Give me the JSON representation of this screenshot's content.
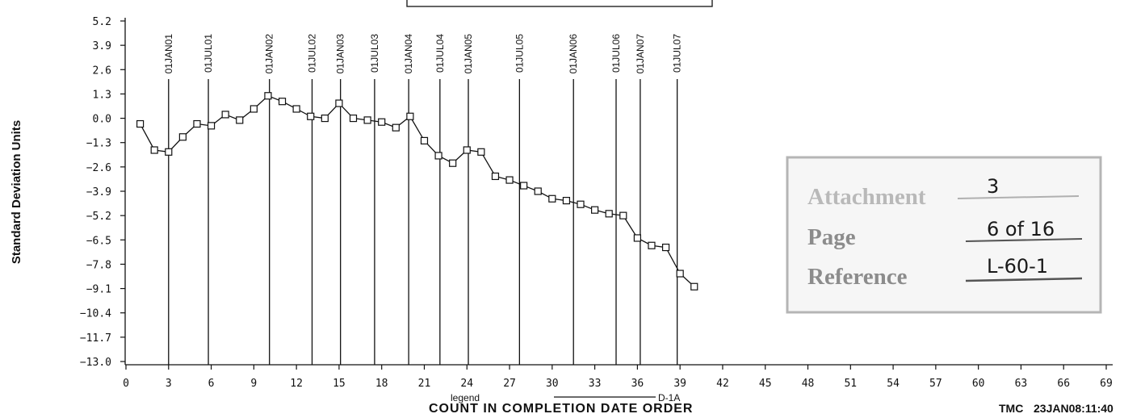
{
  "chart_data": {
    "type": "line",
    "ylabel": "Standard Deviation Units",
    "xlabel": "COUNT IN COMPLETION DATE ORDER",
    "legend": {
      "label": "legend",
      "series_name": "D-1A",
      "placement": "bottom-center"
    },
    "footer": {
      "left": "TMC",
      "right": "23JAN08:11:40"
    },
    "ylim": [
      -13.0,
      5.2
    ],
    "xlim": [
      0,
      69
    ],
    "yticks": [
      "5.2",
      "3.9",
      "2.6",
      "1.3",
      "0.0",
      "-1.3",
      "-2.6",
      "-3.9",
      "-5.2",
      "-6.5",
      "-7.8",
      "-9.1",
      "-10.4",
      "-11.7",
      "-13.0"
    ],
    "xticks": [
      "0",
      "3",
      "6",
      "9",
      "12",
      "15",
      "18",
      "21",
      "24",
      "27",
      "30",
      "33",
      "36",
      "39",
      "42",
      "45",
      "48",
      "51",
      "54",
      "57",
      "60",
      "63",
      "66",
      "69"
    ],
    "ytick_values": [
      5.2,
      3.9,
      2.6,
      1.3,
      0.0,
      -1.3,
      -2.6,
      -3.9,
      -5.2,
      -6.5,
      -7.8,
      -9.1,
      -10.4,
      -11.7,
      -13.0
    ],
    "xtick_values": [
      0,
      3,
      6,
      9,
      12,
      15,
      18,
      21,
      24,
      27,
      30,
      33,
      36,
      39,
      42,
      45,
      48,
      51,
      54,
      57,
      60,
      63,
      66,
      69
    ],
    "series": [
      {
        "name": "D-1A",
        "marker": "square",
        "x": [
          1,
          2,
          3,
          4,
          5,
          6,
          7,
          8,
          9,
          10,
          11,
          12,
          13,
          14,
          15,
          16,
          17,
          18,
          19,
          20,
          21,
          22,
          23,
          24,
          25,
          26,
          27,
          28,
          29,
          30,
          31,
          32,
          33,
          34,
          35,
          36,
          37,
          38,
          39,
          40
        ],
        "y": [
          -0.3,
          -1.7,
          -1.8,
          -1.0,
          -0.3,
          -0.4,
          0.2,
          -0.1,
          0.5,
          1.2,
          0.9,
          0.5,
          0.1,
          0.0,
          0.8,
          0.0,
          -0.1,
          -0.2,
          -0.5,
          0.1,
          -1.2,
          -2.0,
          -2.4,
          -1.7,
          -1.8,
          -3.1,
          -3.3,
          -3.6,
          -3.9,
          -4.3,
          -4.4,
          -4.6,
          -4.9,
          -5.1,
          -5.2,
          -6.4,
          -6.8,
          -6.9,
          -8.3,
          -9.0
        ]
      }
    ],
    "events": [
      {
        "label": "01JAN01",
        "x": 3.0
      },
      {
        "label": "01JUL01",
        "x": 5.8
      },
      {
        "label": "01JAN02",
        "x": 10.1
      },
      {
        "label": "01JUL02",
        "x": 13.1
      },
      {
        "label": "01JAN03",
        "x": 15.1
      },
      {
        "label": "01JUL03",
        "x": 17.5
      },
      {
        "label": "01JAN04",
        "x": 19.9
      },
      {
        "label": "01JUL04",
        "x": 22.1
      },
      {
        "label": "01JAN05",
        "x": 24.1
      },
      {
        "label": "01JUL05",
        "x": 27.7
      },
      {
        "label": "01JAN06",
        "x": 31.5
      },
      {
        "label": "01JUL06",
        "x": 34.5
      },
      {
        "label": "01JAN07",
        "x": 36.2
      },
      {
        "label": "01JUL07",
        "x": 38.8
      }
    ],
    "grid": false
  },
  "stamp": {
    "attachment_label": "Attachment",
    "attachment_value": "3",
    "page_label": "Page",
    "page_value": "6 of 16",
    "reference_label": "Reference",
    "reference_value": "L-60-1"
  }
}
